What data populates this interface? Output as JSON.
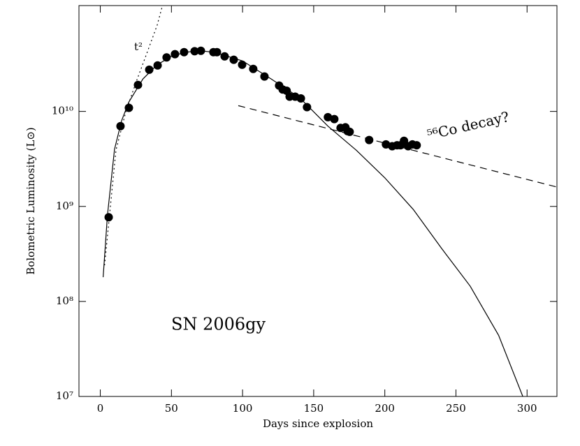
{
  "chart_data": {
    "type": "scatter",
    "xlabel": "Days since explosion",
    "ylabel": "Bolometric Luminosity (L⊙)",
    "annotations": [
      "t²",
      "⁵⁶Co decay?",
      "SN 2006gy"
    ],
    "xlim": [
      -15,
      321
    ],
    "xticks": [
      0,
      50,
      100,
      150,
      200,
      250,
      300
    ],
    "ylim": [
      10000000,
      130000000000
    ],
    "ylog": true,
    "yticks": [
      {
        "value": 10000000,
        "label": "10⁷"
      },
      {
        "value": 100000000,
        "label": "10⁸"
      },
      {
        "value": 1000000000,
        "label": "10⁹"
      },
      {
        "value": 10000000000,
        "label": "10¹⁰"
      }
    ],
    "series": [
      {
        "kind": "scatter",
        "color": "#000000",
        "x": [
          5.9,
          14.2,
          20.1,
          26.5,
          34.4,
          40.3,
          46.6,
          52.5,
          58.9,
          66.3,
          70.7,
          79.5,
          82,
          87.4,
          93.8,
          99.7,
          107.5,
          115.4,
          125.7,
          128.2,
          131,
          133.1,
          137,
          141,
          145.3,
          160,
          164.5,
          168.9,
          172.3,
          173.8,
          175.3,
          189,
          200.8,
          205.2,
          208.6,
          211,
          213.5,
          216.4,
          219.4,
          222.4
        ],
        "values": [
          770000000,
          7000000000,
          10900000000,
          19000000000,
          27500000000,
          30500000000,
          37000000000,
          40000000000,
          42000000000,
          43000000000,
          43500000000,
          42000000000,
          42000000000,
          38000000000,
          35000000000,
          31000000000,
          28000000000,
          23300000000,
          18700000000,
          17000000000,
          16500000000,
          14300000000,
          14300000000,
          13700000000,
          11100000000,
          8700000000,
          8300000000,
          6700000000,
          6800000000,
          6200000000,
          6100000000,
          5000000000,
          4500000000,
          4300000000,
          4400000000,
          4400000000,
          4900000000,
          4300000000,
          4500000000,
          4400000000
        ]
      },
      {
        "kind": "line",
        "style": "solid",
        "color": "#000000",
        "x": [
          2,
          5,
          10,
          15,
          20,
          30,
          40,
          50,
          60,
          70,
          80,
          100,
          120,
          140,
          160,
          180,
          200,
          220,
          240,
          260,
          280,
          297
        ],
        "values": [
          180000000,
          800000000,
          4000000000,
          8000000000,
          12500000000,
          22000000000,
          31000000000,
          38000000000,
          42000000000,
          43500000000,
          42000000000,
          34000000000,
          22000000000,
          14000000000,
          7000000000,
          3900000000,
          2000000000,
          930000000,
          360000000,
          145000000,
          44000000,
          10000000
        ]
      },
      {
        "kind": "line",
        "style": "dashed",
        "color": "#000000",
        "x": [
          97,
          321
        ],
        "values": [
          11500000000,
          1600000000
        ]
      },
      {
        "kind": "line",
        "style": "dotted",
        "color": "#000000",
        "x": [
          3,
          11,
          18,
          25.5,
          33,
          40,
          43.7
        ],
        "values": [
          240000000,
          3900000000,
          10000000000,
          21000000000,
          42000000000,
          81000000000,
          130000000000
        ]
      }
    ]
  }
}
